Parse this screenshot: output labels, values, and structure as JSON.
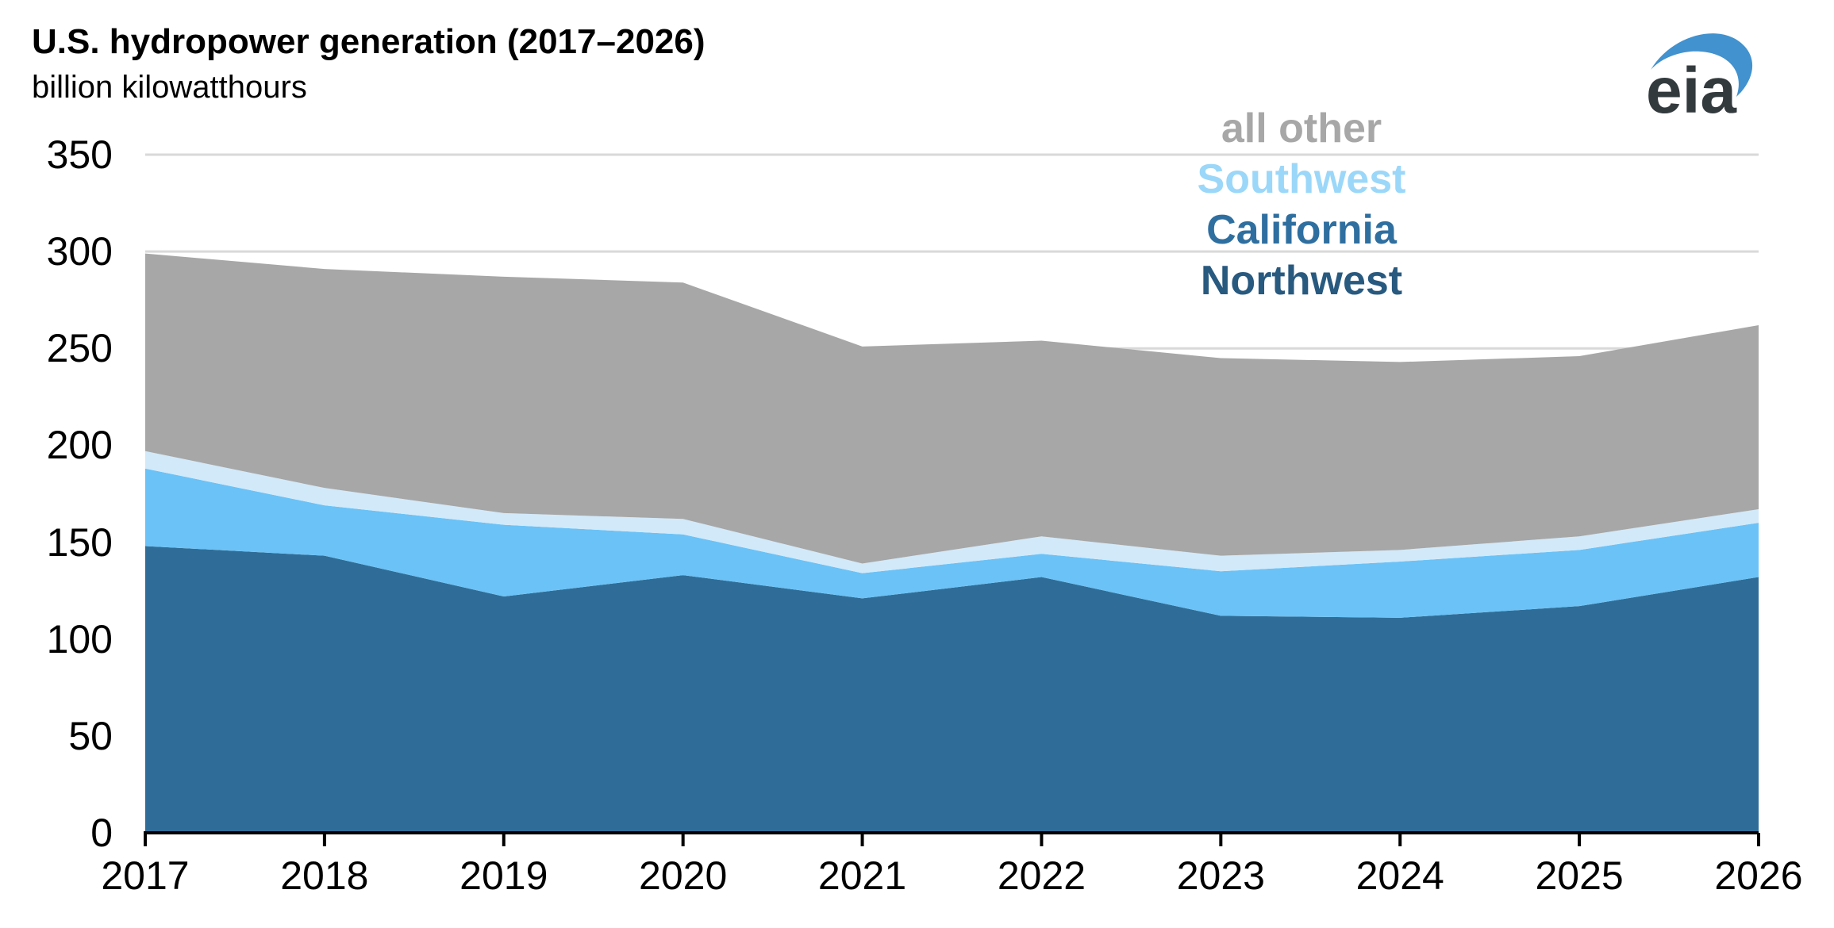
{
  "header": {
    "title": "U.S. hydropower generation (2017–2026)",
    "subtitle": "billion kilowatthours"
  },
  "logo": {
    "text": "eia",
    "swoosh_color": "#4192CE",
    "text_color": "#333A3E"
  },
  "legend": {
    "items": [
      {
        "label": "all other",
        "color": "#A7A7A7"
      },
      {
        "label": "Southwest",
        "color": "#9BD7F9"
      },
      {
        "label": "California",
        "color": "#2F6FA0"
      },
      {
        "label": "Northwest",
        "color": "#28597F"
      }
    ]
  },
  "chart_data": {
    "type": "area",
    "stacked": true,
    "title": "U.S. hydropower generation (2017–2026)",
    "ylabel": "billion kilowatthours",
    "x": [
      2017,
      2018,
      2019,
      2020,
      2021,
      2022,
      2023,
      2024,
      2025,
      2026
    ],
    "series": [
      {
        "name": "Northwest",
        "color": "#2F6D98",
        "values": [
          148,
          143,
          122,
          133,
          121,
          132,
          112,
          111,
          117,
          132
        ]
      },
      {
        "name": "California",
        "color": "#6BC2F6",
        "values": [
          40,
          26,
          37,
          21,
          13,
          12,
          23,
          29,
          29,
          28
        ]
      },
      {
        "name": "Southwest",
        "color": "#D2E9F9",
        "values": [
          9,
          9,
          6,
          8,
          5,
          9,
          8,
          6,
          7,
          7
        ]
      },
      {
        "name": "all other",
        "color": "#A7A7A7",
        "values": [
          102,
          113,
          122,
          122,
          112,
          101,
          102,
          97,
          93,
          95
        ]
      }
    ],
    "totals": [
      299,
      291,
      287,
      284,
      251,
      254,
      245,
      243,
      246,
      262
    ],
    "ylim": [
      0,
      350
    ],
    "y_ticks": [
      0,
      50,
      100,
      150,
      200,
      250,
      300,
      350
    ],
    "grid": true,
    "gridline_color": "#D9D9D9",
    "axis_color": "#000000",
    "legend_position": "top-right"
  }
}
